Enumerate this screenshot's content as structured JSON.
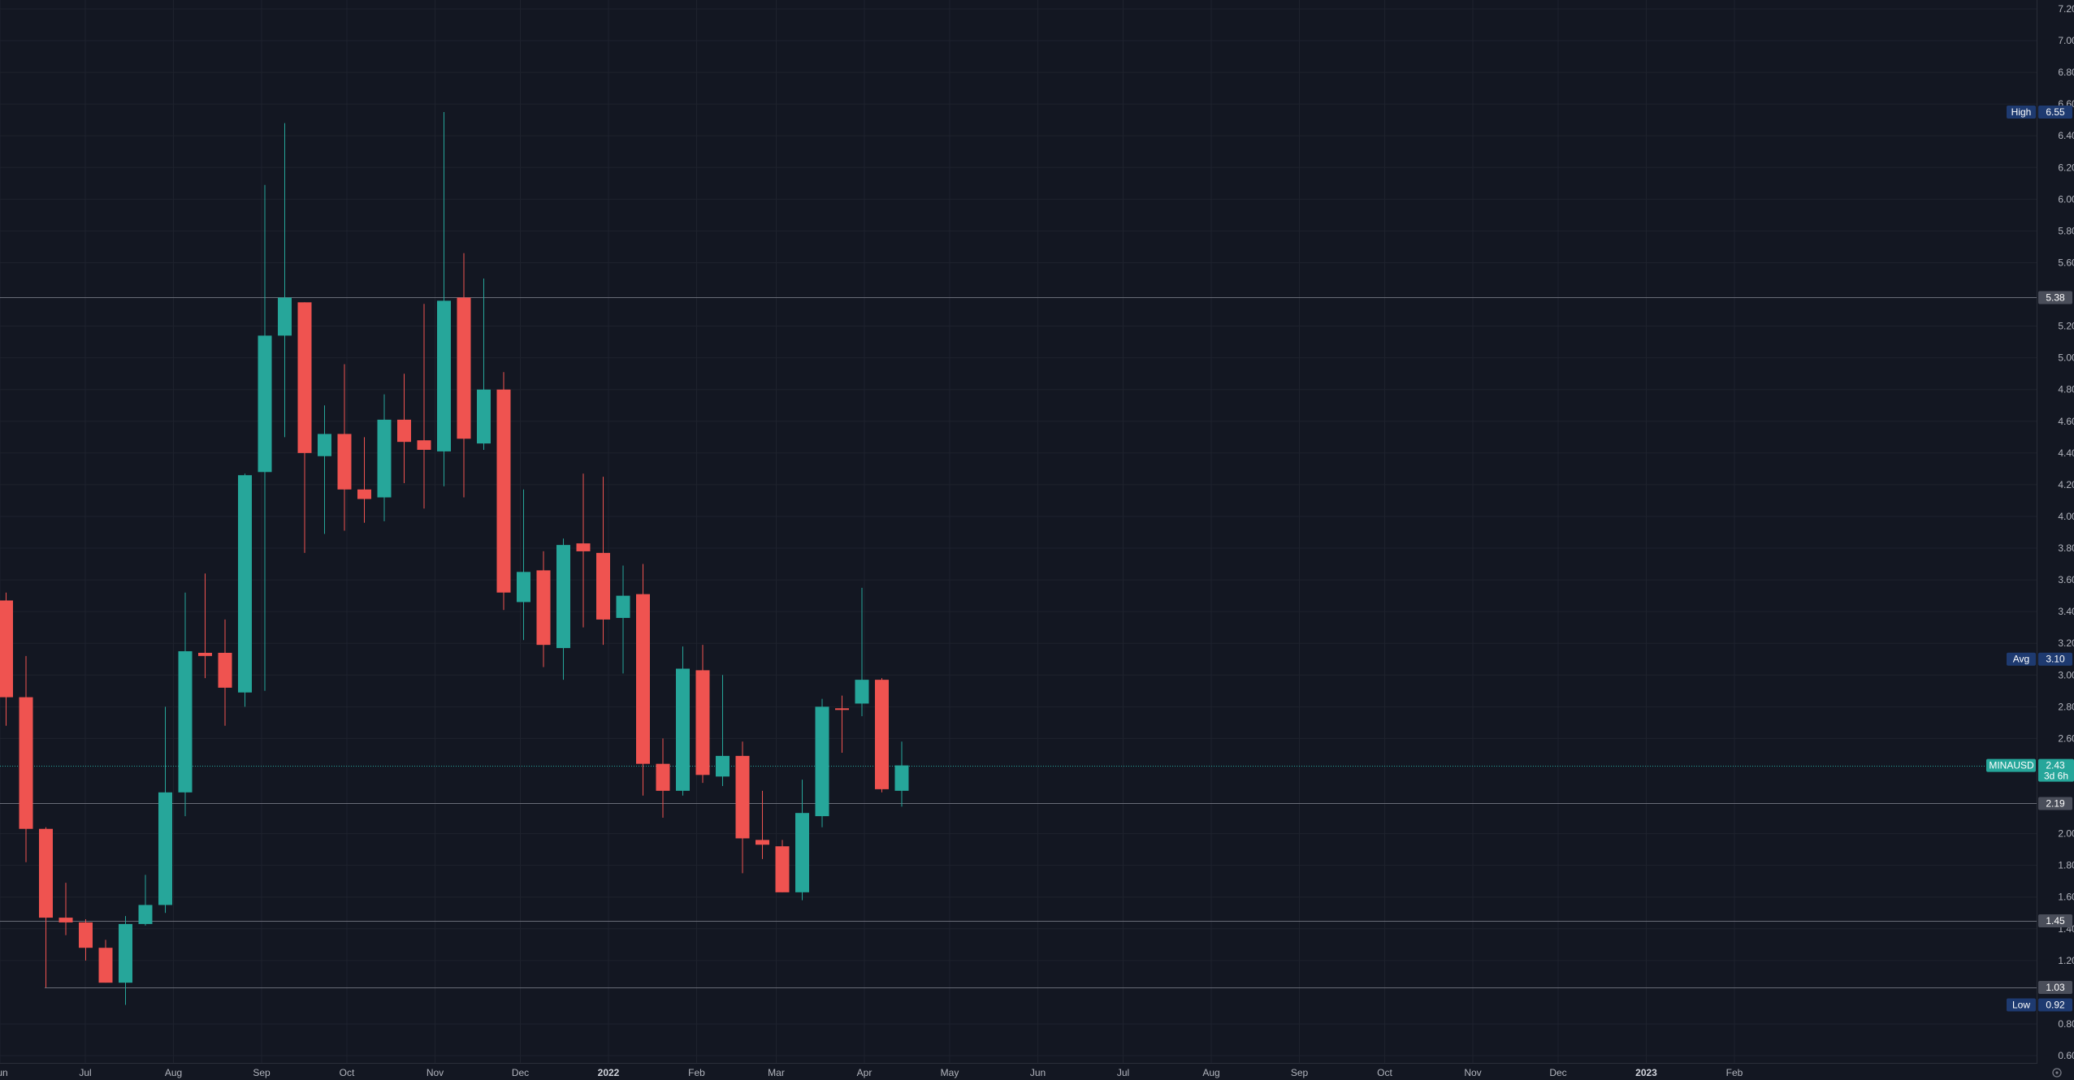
{
  "chart_data": {
    "type": "candlestick",
    "symbol": "MINAUSD",
    "interval_note": "weekly",
    "colors": {
      "background": "#131722",
      "up": "#26a69a",
      "down": "#ef5350",
      "grid": "#1e222d",
      "axis_text": "#b2b5be",
      "horizontal_line": "#787b86",
      "high_low_badge": "#1e3a70",
      "avg_badge": "#1e3a70",
      "hline_badge": "#4a4e5a"
    },
    "y_axis": {
      "ylim": [
        0.55,
        7.25
      ],
      "ticks": [
        "7.20",
        "7.00",
        "6.80",
        "6.60",
        "6.40",
        "6.20",
        "6.00",
        "5.80",
        "5.60",
        "5.20",
        "5.00",
        "4.80",
        "4.60",
        "4.40",
        "4.20",
        "4.00",
        "3.80",
        "3.60",
        "3.40",
        "3.20",
        "3.00",
        "2.80",
        "2.60",
        "2.00",
        "1.80",
        "1.60",
        "1.40",
        "1.20",
        "0.80",
        "0.60"
      ]
    },
    "x_axis": {
      "start_date": "2021-06-01",
      "end_date": "2023-02-28",
      "labels": [
        {
          "date": "2021-06-01",
          "text": "Jun"
        },
        {
          "date": "2021-07-01",
          "text": "Jul"
        },
        {
          "date": "2021-08-01",
          "text": "Aug"
        },
        {
          "date": "2021-09-01",
          "text": "Sep"
        },
        {
          "date": "2021-10-01",
          "text": "Oct"
        },
        {
          "date": "2021-11-01",
          "text": "Nov"
        },
        {
          "date": "2021-12-01",
          "text": "Dec"
        },
        {
          "date": "2022-01-01",
          "text": "2022",
          "bold": true
        },
        {
          "date": "2022-02-01",
          "text": "Feb"
        },
        {
          "date": "2022-03-01",
          "text": "Mar"
        },
        {
          "date": "2022-04-01",
          "text": "Apr"
        },
        {
          "date": "2022-05-01",
          "text": "May"
        },
        {
          "date": "2022-06-01",
          "text": "Jun"
        },
        {
          "date": "2022-07-01",
          "text": "Jul"
        },
        {
          "date": "2022-08-01",
          "text": "Aug"
        },
        {
          "date": "2022-09-01",
          "text": "Sep"
        },
        {
          "date": "2022-10-01",
          "text": "Oct"
        },
        {
          "date": "2022-11-01",
          "text": "Nov"
        },
        {
          "date": "2022-12-01",
          "text": "Dec"
        },
        {
          "date": "2023-01-01",
          "text": "2023",
          "bold": true
        },
        {
          "date": "2023-02-01",
          "text": "Feb"
        }
      ]
    },
    "candles": [
      {
        "date": "2021-05-31",
        "o": 3.47,
        "h": 3.52,
        "l": 2.68,
        "c": 2.86
      },
      {
        "date": "2021-06-07",
        "o": 2.86,
        "h": 3.12,
        "l": 1.82,
        "c": 2.03
      },
      {
        "date": "2021-06-14",
        "o": 2.03,
        "h": 2.04,
        "l": 1.03,
        "c": 1.47
      },
      {
        "date": "2021-06-21",
        "o": 1.47,
        "h": 1.69,
        "l": 1.36,
        "c": 1.44
      },
      {
        "date": "2021-06-28",
        "o": 1.44,
        "h": 1.46,
        "l": 1.2,
        "c": 1.28
      },
      {
        "date": "2021-07-05",
        "o": 1.28,
        "h": 1.33,
        "l": 1.06,
        "c": 1.06
      },
      {
        "date": "2021-07-12",
        "o": 1.06,
        "h": 1.48,
        "l": 0.92,
        "c": 1.43
      },
      {
        "date": "2021-07-19",
        "o": 1.43,
        "h": 1.74,
        "l": 1.42,
        "c": 1.55
      },
      {
        "date": "2021-07-26",
        "o": 1.55,
        "h": 2.8,
        "l": 1.5,
        "c": 2.26
      },
      {
        "date": "2021-08-02",
        "o": 2.26,
        "h": 3.52,
        "l": 2.11,
        "c": 3.15
      },
      {
        "date": "2021-08-09",
        "o": 3.14,
        "h": 3.64,
        "l": 2.98,
        "c": 3.12
      },
      {
        "date": "2021-08-16",
        "o": 3.14,
        "h": 3.35,
        "l": 2.68,
        "c": 2.92
      },
      {
        "date": "2021-08-23",
        "o": 2.89,
        "h": 4.27,
        "l": 2.8,
        "c": 4.26
      },
      {
        "date": "2021-08-30",
        "o": 4.28,
        "h": 6.09,
        "l": 2.9,
        "c": 5.14
      },
      {
        "date": "2021-09-06",
        "o": 5.14,
        "h": 6.48,
        "l": 4.5,
        "c": 5.38
      },
      {
        "date": "2021-09-13",
        "o": 5.35,
        "h": 5.35,
        "l": 3.77,
        "c": 4.4
      },
      {
        "date": "2021-09-20",
        "o": 4.38,
        "h": 4.7,
        "l": 3.89,
        "c": 4.52
      },
      {
        "date": "2021-09-27",
        "o": 4.52,
        "h": 4.96,
        "l": 3.91,
        "c": 4.17
      },
      {
        "date": "2021-10-04",
        "o": 4.17,
        "h": 4.5,
        "l": 3.96,
        "c": 4.11
      },
      {
        "date": "2021-10-11",
        "o": 4.12,
        "h": 4.77,
        "l": 3.97,
        "c": 4.61
      },
      {
        "date": "2021-10-18",
        "o": 4.61,
        "h": 4.9,
        "l": 4.21,
        "c": 4.47
      },
      {
        "date": "2021-10-25",
        "o": 4.48,
        "h": 5.34,
        "l": 4.05,
        "c": 4.42
      },
      {
        "date": "2021-11-01",
        "o": 4.41,
        "h": 6.55,
        "l": 4.19,
        "c": 5.36
      },
      {
        "date": "2021-11-08",
        "o": 5.38,
        "h": 5.66,
        "l": 4.12,
        "c": 4.49
      },
      {
        "date": "2021-11-15",
        "o": 4.46,
        "h": 5.5,
        "l": 4.42,
        "c": 4.8
      },
      {
        "date": "2021-11-22",
        "o": 4.8,
        "h": 4.91,
        "l": 3.41,
        "c": 3.52
      },
      {
        "date": "2021-11-29",
        "o": 3.46,
        "h": 4.17,
        "l": 3.22,
        "c": 3.65
      },
      {
        "date": "2021-12-06",
        "o": 3.66,
        "h": 3.78,
        "l": 3.05,
        "c": 3.19
      },
      {
        "date": "2021-12-13",
        "o": 3.17,
        "h": 3.86,
        "l": 2.97,
        "c": 3.82
      },
      {
        "date": "2021-12-20",
        "o": 3.83,
        "h": 4.27,
        "l": 3.3,
        "c": 3.78
      },
      {
        "date": "2021-12-27",
        "o": 3.77,
        "h": 4.25,
        "l": 3.19,
        "c": 3.35
      },
      {
        "date": "2022-01-03",
        "o": 3.36,
        "h": 3.69,
        "l": 3.01,
        "c": 3.5
      },
      {
        "date": "2022-01-10",
        "o": 3.51,
        "h": 3.7,
        "l": 2.24,
        "c": 2.44
      },
      {
        "date": "2022-01-17",
        "o": 2.44,
        "h": 2.6,
        "l": 2.1,
        "c": 2.27
      },
      {
        "date": "2022-01-24",
        "o": 2.27,
        "h": 3.18,
        "l": 2.24,
        "c": 3.04
      },
      {
        "date": "2022-01-31",
        "o": 3.03,
        "h": 3.19,
        "l": 2.32,
        "c": 2.37
      },
      {
        "date": "2022-02-07",
        "o": 2.36,
        "h": 3.0,
        "l": 2.3,
        "c": 2.49
      },
      {
        "date": "2022-02-14",
        "o": 2.49,
        "h": 2.58,
        "l": 1.75,
        "c": 1.97
      },
      {
        "date": "2022-02-21",
        "o": 1.96,
        "h": 2.27,
        "l": 1.84,
        "c": 1.93
      },
      {
        "date": "2022-02-28",
        "o": 1.92,
        "h": 1.96,
        "l": 1.63,
        "c": 1.63
      },
      {
        "date": "2022-03-07",
        "o": 1.63,
        "h": 2.34,
        "l": 1.58,
        "c": 2.13
      },
      {
        "date": "2022-03-14",
        "o": 2.11,
        "h": 2.85,
        "l": 2.04,
        "c": 2.8
      },
      {
        "date": "2022-03-21",
        "o": 2.79,
        "h": 2.87,
        "l": 2.51,
        "c": 2.78
      },
      {
        "date": "2022-03-28",
        "o": 2.82,
        "h": 3.55,
        "l": 2.74,
        "c": 2.97
      },
      {
        "date": "2022-04-04",
        "o": 2.97,
        "h": 2.98,
        "l": 2.26,
        "c": 2.28
      },
      {
        "date": "2022-04-11",
        "o": 2.27,
        "h": 2.58,
        "l": 2.17,
        "c": 2.43
      }
    ],
    "horizontal_lines": [
      5.38,
      2.19,
      1.45,
      1.03
    ],
    "current_price_line": 2.43,
    "badges": [
      {
        "label": "High",
        "value": "6.55",
        "price": 6.55
      },
      {
        "label": "Avg",
        "value": "3.10",
        "price": 3.1
      },
      {
        "label": "Low",
        "value": "0.92",
        "price": 0.92
      }
    ],
    "hline_labels": [
      "5.38",
      "2.19",
      "1.45",
      "1.03"
    ],
    "current_label": {
      "symbol": "MINAUSD",
      "value": "2.43",
      "countdown": "3d 6h"
    }
  }
}
